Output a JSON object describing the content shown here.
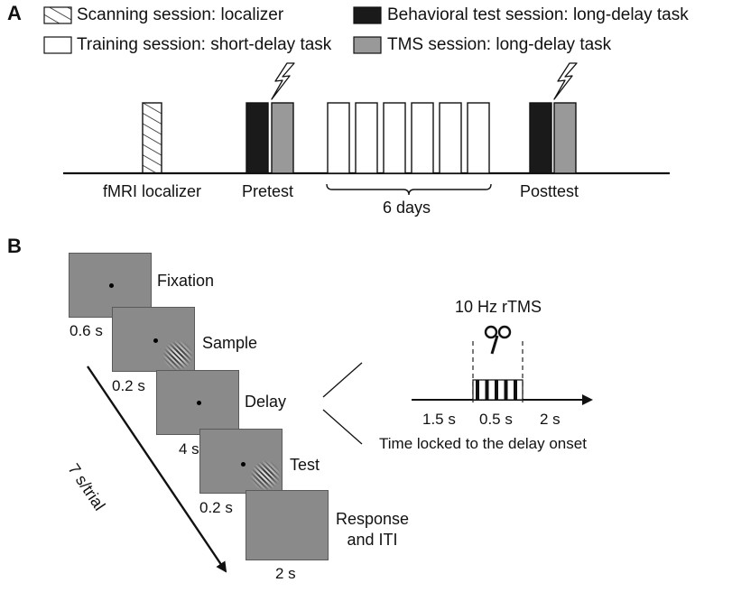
{
  "panelA": {
    "letter": "A",
    "legend": [
      {
        "label": "Scanning session: localizer",
        "style": "hatched"
      },
      {
        "label": "Training session: short-delay task",
        "style": "white"
      },
      {
        "label": "Behavioral test session: long-delay task",
        "style": "black"
      },
      {
        "label": "TMS session: long-delay task",
        "style": "gray"
      }
    ],
    "timeline_labels": {
      "localizer": "fMRI localizer",
      "pretest": "Pretest",
      "days": "6 days",
      "posttest": "Posttest"
    },
    "training_days_count": 6
  },
  "panelB": {
    "letter": "B",
    "screens": [
      {
        "label": "Fixation",
        "duration": "0.6 s",
        "stimulus": "fixation"
      },
      {
        "label": "Sample",
        "duration": "0.2 s",
        "stimulus": "fixation-gabor"
      },
      {
        "label": "Delay",
        "duration": "4 s",
        "stimulus": "fixation"
      },
      {
        "label": "Test",
        "duration": "0.2 s",
        "stimulus": "fixation-gabor"
      },
      {
        "label": "Response\nand ITI",
        "duration": "2 s",
        "stimulus": "blank"
      }
    ],
    "trial_duration": "7 s/trial",
    "rtms": {
      "title": "10 Hz rTMS",
      "pulses": 5,
      "segments": [
        "1.5 s",
        "0.5 s",
        "2 s"
      ],
      "caption": "Time locked to the delay onset"
    }
  },
  "colors": {
    "black_bar": "#1a1a1a",
    "gray_bar": "#999999",
    "screen": "#8a8a8a"
  }
}
